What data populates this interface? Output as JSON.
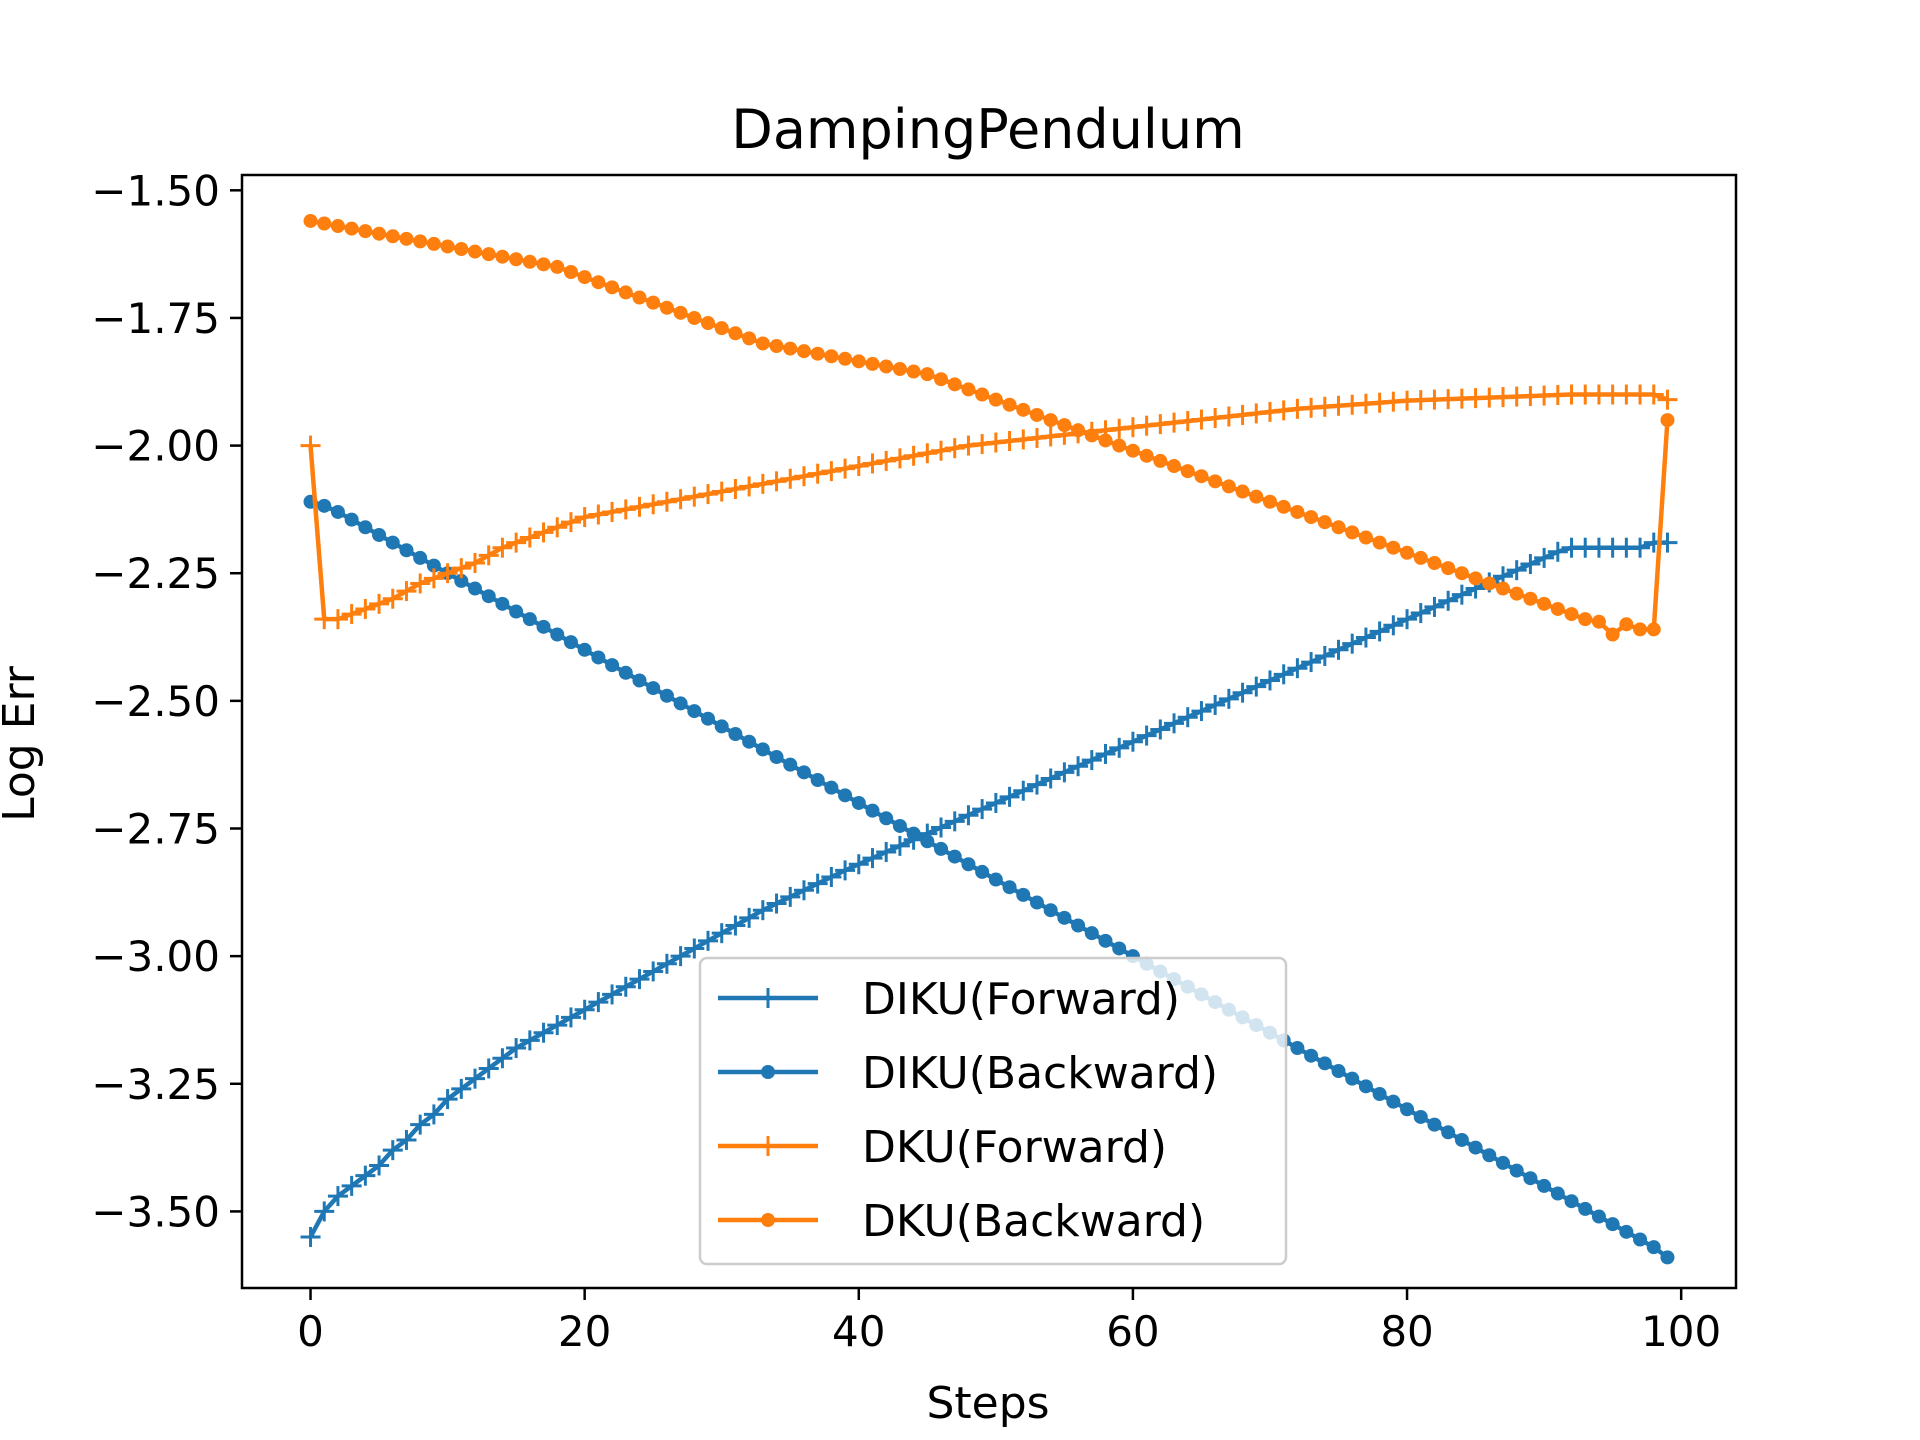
{
  "chart_data": {
    "type": "line",
    "title": "DampingPendulum",
    "xlabel": "Steps",
    "ylabel": "Log Err",
    "xlim": [
      -5,
      104
    ],
    "ylim": [
      -3.65,
      -1.47
    ],
    "x_ticks": [
      0,
      20,
      40,
      60,
      80,
      100
    ],
    "x_tick_labels": [
      "0",
      "20",
      "40",
      "60",
      "80",
      "100"
    ],
    "y_ticks": [
      -1.5,
      -1.75,
      -2.0,
      -2.25,
      -2.5,
      -2.75,
      -3.0,
      -3.25,
      -3.5
    ],
    "y_tick_labels": [
      "−1.50",
      "−1.75",
      "−2.00",
      "−2.25",
      "−2.50",
      "−2.75",
      "−3.00",
      "−3.25",
      "−3.50"
    ],
    "grid": false,
    "legend_position": "lower-center",
    "x": [
      0,
      1,
      2,
      3,
      4,
      5,
      6,
      7,
      8,
      9,
      10,
      11,
      12,
      13,
      14,
      15,
      16,
      17,
      18,
      19,
      20,
      21,
      22,
      23,
      24,
      25,
      26,
      27,
      28,
      29,
      30,
      31,
      32,
      33,
      34,
      35,
      36,
      37,
      38,
      39,
      40,
      41,
      42,
      43,
      44,
      45,
      46,
      47,
      48,
      49,
      50,
      51,
      52,
      53,
      54,
      55,
      56,
      57,
      58,
      59,
      60,
      61,
      62,
      63,
      64,
      65,
      66,
      67,
      68,
      69,
      70,
      71,
      72,
      73,
      74,
      75,
      76,
      77,
      78,
      79,
      80,
      81,
      82,
      83,
      84,
      85,
      86,
      87,
      88,
      89,
      90,
      91,
      92,
      93,
      94,
      95,
      96,
      97,
      98,
      99
    ],
    "series": [
      {
        "name": "DIKU(Forward)",
        "color": "#1f77b4",
        "marker": "plus",
        "values": [
          -3.55,
          -3.5,
          -3.47,
          -3.45,
          -3.43,
          -3.41,
          -3.38,
          -3.36,
          -3.33,
          -3.31,
          -3.28,
          -3.26,
          -3.24,
          -3.22,
          -3.2,
          -3.18,
          -3.165,
          -3.15,
          -3.135,
          -3.12,
          -3.105,
          -3.09,
          -3.075,
          -3.06,
          -3.045,
          -3.03,
          -3.015,
          -3.0,
          -2.985,
          -2.97,
          -2.955,
          -2.94,
          -2.925,
          -2.91,
          -2.897,
          -2.884,
          -2.871,
          -2.858,
          -2.845,
          -2.832,
          -2.82,
          -2.808,
          -2.796,
          -2.784,
          -2.772,
          -2.76,
          -2.748,
          -2.736,
          -2.724,
          -2.712,
          -2.7,
          -2.688,
          -2.676,
          -2.664,
          -2.652,
          -2.64,
          -2.628,
          -2.616,
          -2.604,
          -2.592,
          -2.58,
          -2.568,
          -2.556,
          -2.544,
          -2.532,
          -2.52,
          -2.508,
          -2.496,
          -2.484,
          -2.472,
          -2.46,
          -2.448,
          -2.436,
          -2.424,
          -2.412,
          -2.4,
          -2.388,
          -2.376,
          -2.364,
          -2.352,
          -2.34,
          -2.328,
          -2.316,
          -2.304,
          -2.292,
          -2.28,
          -2.268,
          -2.256,
          -2.244,
          -2.232,
          -2.22,
          -2.208,
          -2.2,
          -2.2,
          -2.2,
          -2.2,
          -2.2,
          -2.2,
          -2.19,
          -2.19
        ]
      },
      {
        "name": "DIKU(Backward)",
        "color": "#1f77b4",
        "marker": "dot",
        "values": [
          -2.11,
          -2.118,
          -2.13,
          -2.145,
          -2.16,
          -2.175,
          -2.19,
          -2.205,
          -2.22,
          -2.235,
          -2.25,
          -2.265,
          -2.28,
          -2.295,
          -2.31,
          -2.325,
          -2.34,
          -2.355,
          -2.37,
          -2.385,
          -2.4,
          -2.415,
          -2.43,
          -2.445,
          -2.46,
          -2.475,
          -2.49,
          -2.505,
          -2.52,
          -2.535,
          -2.55,
          -2.565,
          -2.58,
          -2.595,
          -2.61,
          -2.625,
          -2.64,
          -2.655,
          -2.67,
          -2.685,
          -2.7,
          -2.715,
          -2.73,
          -2.745,
          -2.76,
          -2.775,
          -2.79,
          -2.805,
          -2.82,
          -2.835,
          -2.85,
          -2.865,
          -2.88,
          -2.895,
          -2.91,
          -2.925,
          -2.94,
          -2.955,
          -2.97,
          -2.985,
          -3.0,
          -3.015,
          -3.03,
          -3.045,
          -3.06,
          -3.075,
          -3.09,
          -3.105,
          -3.12,
          -3.135,
          -3.15,
          -3.165,
          -3.18,
          -3.195,
          -3.21,
          -3.225,
          -3.24,
          -3.255,
          -3.27,
          -3.285,
          -3.3,
          -3.315,
          -3.33,
          -3.345,
          -3.36,
          -3.375,
          -3.39,
          -3.405,
          -3.42,
          -3.435,
          -3.45,
          -3.465,
          -3.48,
          -3.495,
          -3.51,
          -3.525,
          -3.54,
          -3.555,
          -3.57,
          -3.59
        ]
      },
      {
        "name": "DKU(Forward)",
        "color": "#ff7f0e",
        "marker": "plus",
        "values": [
          -2.0,
          -2.34,
          -2.34,
          -2.33,
          -2.32,
          -2.31,
          -2.3,
          -2.285,
          -2.27,
          -2.26,
          -2.25,
          -2.24,
          -2.23,
          -2.215,
          -2.2,
          -2.19,
          -2.18,
          -2.17,
          -2.16,
          -2.15,
          -2.14,
          -2.135,
          -2.13,
          -2.125,
          -2.12,
          -2.115,
          -2.11,
          -2.105,
          -2.1,
          -2.095,
          -2.09,
          -2.085,
          -2.08,
          -2.075,
          -2.07,
          -2.065,
          -2.06,
          -2.055,
          -2.05,
          -2.045,
          -2.04,
          -2.035,
          -2.03,
          -2.025,
          -2.02,
          -2.015,
          -2.01,
          -2.005,
          -2.0,
          -1.997,
          -1.994,
          -1.991,
          -1.988,
          -1.985,
          -1.982,
          -1.979,
          -1.976,
          -1.973,
          -1.97,
          -1.967,
          -1.964,
          -1.961,
          -1.958,
          -1.955,
          -1.952,
          -1.949,
          -1.946,
          -1.943,
          -1.94,
          -1.937,
          -1.934,
          -1.931,
          -1.928,
          -1.926,
          -1.924,
          -1.922,
          -1.92,
          -1.918,
          -1.916,
          -1.914,
          -1.912,
          -1.911,
          -1.91,
          -1.909,
          -1.908,
          -1.907,
          -1.906,
          -1.905,
          -1.904,
          -1.903,
          -1.902,
          -1.901,
          -1.9,
          -1.9,
          -1.9,
          -1.9,
          -1.9,
          -1.9,
          -1.9,
          -1.91
        ]
      },
      {
        "name": "DKU(Backward)",
        "color": "#ff7f0e",
        "marker": "dot",
        "values": [
          -1.56,
          -1.565,
          -1.57,
          -1.575,
          -1.58,
          -1.585,
          -1.59,
          -1.595,
          -1.6,
          -1.605,
          -1.61,
          -1.615,
          -1.62,
          -1.625,
          -1.63,
          -1.635,
          -1.64,
          -1.645,
          -1.65,
          -1.66,
          -1.67,
          -1.68,
          -1.69,
          -1.7,
          -1.71,
          -1.72,
          -1.73,
          -1.74,
          -1.75,
          -1.76,
          -1.77,
          -1.78,
          -1.79,
          -1.8,
          -1.805,
          -1.81,
          -1.815,
          -1.82,
          -1.825,
          -1.83,
          -1.835,
          -1.84,
          -1.845,
          -1.85,
          -1.855,
          -1.86,
          -1.87,
          -1.88,
          -1.89,
          -1.9,
          -1.91,
          -1.92,
          -1.93,
          -1.94,
          -1.95,
          -1.96,
          -1.97,
          -1.98,
          -1.99,
          -2.0,
          -2.01,
          -2.02,
          -2.03,
          -2.04,
          -2.05,
          -2.06,
          -2.07,
          -2.08,
          -2.09,
          -2.1,
          -2.11,
          -2.12,
          -2.13,
          -2.14,
          -2.15,
          -2.16,
          -2.17,
          -2.18,
          -2.19,
          -2.2,
          -2.21,
          -2.22,
          -2.23,
          -2.24,
          -2.25,
          -2.26,
          -2.27,
          -2.28,
          -2.29,
          -2.3,
          -2.31,
          -2.32,
          -2.33,
          -2.34,
          -2.345,
          -2.37,
          -2.35,
          -2.36,
          -2.36,
          -1.95
        ]
      }
    ]
  }
}
